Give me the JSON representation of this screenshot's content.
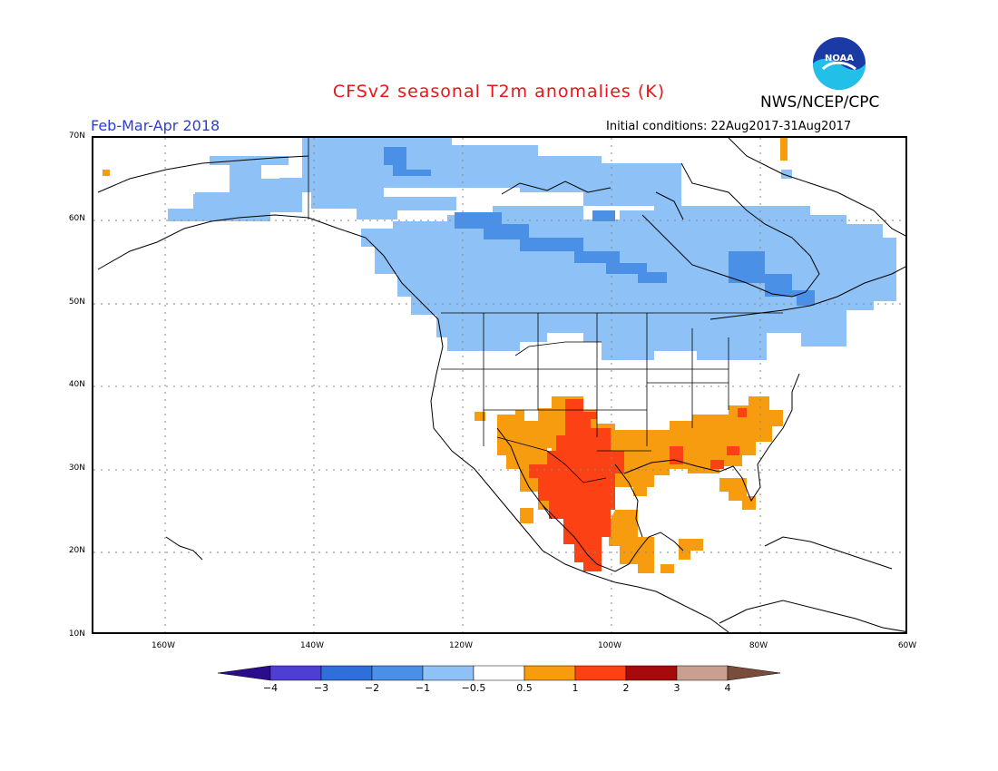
{
  "title": "CFSv2 seasonal T2m anomalies (K)",
  "organization": "NWS/NCEP/CPC",
  "logo_text": "NOAA",
  "period": "Feb-Mar-Apr 2018",
  "initial_conditions": "Initial conditions: 22Aug2017-31Aug2017",
  "lat_labels": [
    "70N",
    "60N",
    "50N",
    "40N",
    "30N",
    "20N",
    "10N"
  ],
  "lon_labels": [
    "160W",
    "140W",
    "120W",
    "100W",
    "80W",
    "60W"
  ],
  "legend": {
    "colors": [
      "#2a0c8c",
      "#4f3fd1",
      "#2e6fd9",
      "#4a90e6",
      "#8ec1f5",
      "#ffffff",
      "#f79c0f",
      "#fc4214",
      "#a70a0a",
      "#c9a08f",
      "#7a4c3a"
    ],
    "labels": [
      "−4",
      "−3",
      "−2",
      "−1",
      "−0.5",
      "0.5",
      "1",
      "2",
      "3",
      "4"
    ]
  },
  "colors": {
    "light_blue": "#8ec1f5",
    "blue": "#4a90e6",
    "orange": "#f79c0f",
    "red_orange": "#fc4214"
  }
}
